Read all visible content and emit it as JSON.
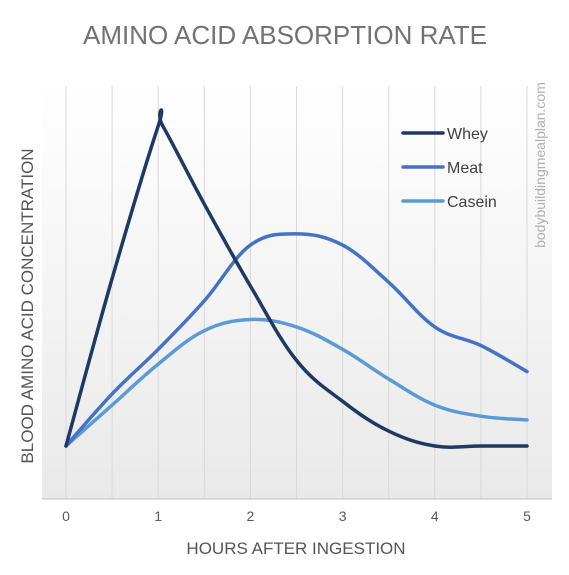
{
  "chart_data": {
    "type": "line",
    "title": "AMINO ACID ABSORPTION RATE",
    "xlabel": "HOURS AFTER INGESTION",
    "ylabel": "BLOOD AMINO ACID CONCENTRATION",
    "watermark": "bodybuildingmealplan.com",
    "xlim": [
      0,
      5
    ],
    "ylim": [
      0,
      100
    ],
    "x_ticks": [
      0,
      1,
      2,
      3,
      4,
      5
    ],
    "x_tick_labels": [
      "0",
      "1",
      "2",
      "3",
      "4",
      "5"
    ],
    "grid": "vertical",
    "legend_position": "top-right",
    "series": [
      {
        "name": "Whey",
        "color": "#1F3864",
        "x": [
          0,
          0.5,
          1,
          1.05,
          1.5,
          2,
          2.5,
          3,
          3.5,
          4,
          4.5,
          5
        ],
        "y": [
          14,
          59,
          100,
          100,
          79,
          57,
          37,
          26,
          18,
          14,
          14,
          14
        ]
      },
      {
        "name": "Meat",
        "color": "#4472C4",
        "x": [
          0,
          0.5,
          1,
          1.5,
          2,
          2.5,
          3,
          3.5,
          4,
          4.5,
          5
        ],
        "y": [
          14,
          28,
          40,
          53,
          68,
          71,
          68,
          58,
          46,
          41,
          34
        ]
      },
      {
        "name": "Casein",
        "color": "#5B9BD5",
        "x": [
          0,
          0.5,
          1,
          1.5,
          2,
          2.5,
          3,
          3.5,
          4,
          4.5,
          5
        ],
        "y": [
          14,
          25,
          36,
          45,
          48,
          46,
          40,
          32,
          25,
          22,
          21
        ]
      }
    ]
  }
}
